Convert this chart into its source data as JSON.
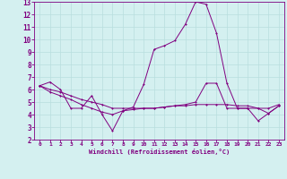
{
  "xlabel": "Windchill (Refroidissement éolien,°C)",
  "background_color": "#d4f0f0",
  "grid_color": "#b8dede",
  "line_color": "#800080",
  "xlim": [
    -0.5,
    23.5
  ],
  "ylim": [
    2,
    13
  ],
  "xticks": [
    0,
    1,
    2,
    3,
    4,
    5,
    6,
    7,
    8,
    9,
    10,
    11,
    12,
    13,
    14,
    15,
    16,
    17,
    18,
    19,
    20,
    21,
    22,
    23
  ],
  "yticks": [
    2,
    3,
    4,
    5,
    6,
    7,
    8,
    9,
    10,
    11,
    12,
    13
  ],
  "line1_x": [
    0,
    1,
    2,
    3,
    4,
    5,
    6,
    7,
    8,
    9,
    10,
    11,
    12,
    13,
    14,
    15,
    16,
    17,
    18,
    19,
    20,
    21,
    22,
    23
  ],
  "line1_y": [
    6.3,
    6.6,
    6.0,
    4.5,
    4.5,
    5.5,
    4.0,
    2.7,
    4.3,
    4.6,
    6.4,
    9.2,
    9.5,
    9.9,
    11.2,
    13.0,
    12.8,
    10.5,
    6.5,
    4.5,
    4.5,
    3.5,
    4.1,
    4.7
  ],
  "line2_x": [
    0,
    1,
    2,
    3,
    4,
    5,
    6,
    7,
    8,
    9,
    10,
    11,
    12,
    13,
    14,
    15,
    16,
    17,
    18,
    19,
    20,
    21,
    22,
    23
  ],
  "line2_y": [
    6.3,
    6.0,
    5.8,
    5.5,
    5.2,
    5.0,
    4.8,
    4.5,
    4.5,
    4.5,
    4.5,
    4.5,
    4.6,
    4.7,
    4.8,
    5.0,
    6.5,
    6.5,
    4.5,
    4.5,
    4.5,
    4.5,
    4.5,
    4.8
  ],
  "line3_x": [
    0,
    1,
    2,
    3,
    4,
    5,
    6,
    7,
    8,
    9,
    10,
    11,
    12,
    13,
    14,
    15,
    16,
    17,
    18,
    19,
    20,
    21,
    22,
    23
  ],
  "line3_y": [
    6.3,
    5.8,
    5.5,
    5.2,
    4.8,
    4.5,
    4.2,
    4.0,
    4.3,
    4.4,
    4.5,
    4.5,
    4.6,
    4.7,
    4.7,
    4.8,
    4.8,
    4.8,
    4.8,
    4.7,
    4.7,
    4.5,
    4.1,
    4.7
  ]
}
